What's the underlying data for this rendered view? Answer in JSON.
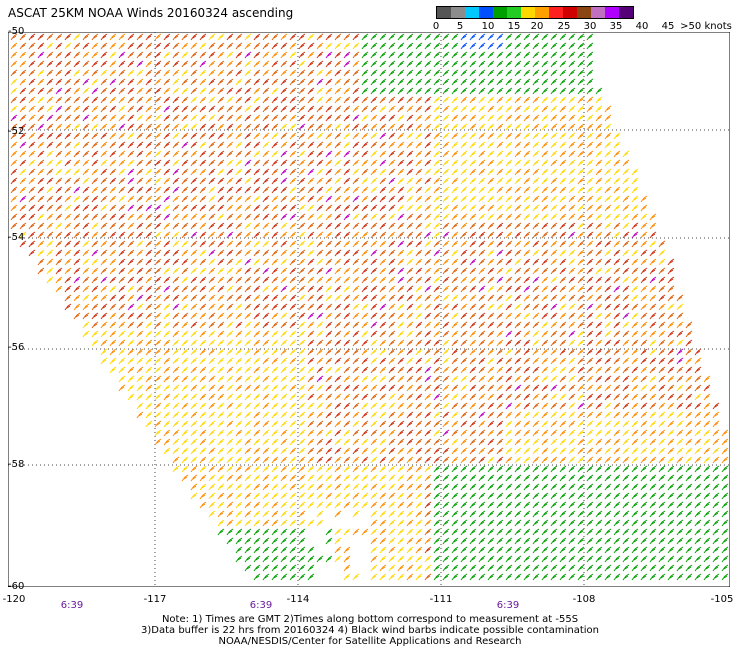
{
  "title": "ASCAT 25KM NOAA Winds 20160324 ascending",
  "legend": {
    "colors": [
      "#555555",
      "#8c8c8c",
      "#00c8ff",
      "#0050ff",
      "#00a000",
      "#22cc22",
      "#ffd800",
      "#ffa000",
      "#ff2020",
      "#d00000",
      "#8b4513",
      "#c070c0",
      "#b000ff",
      "#550077"
    ],
    "labels": [
      "0",
      "5",
      "10",
      "15",
      "20",
      "25",
      "30",
      "35",
      "40",
      "45",
      ">50 knots"
    ]
  },
  "lat_labels": [
    "-50",
    "-52",
    "-54",
    "-56",
    "-58",
    "-60"
  ],
  "lon_labels": [
    "-120",
    "-117",
    "-114",
    "-111",
    "-108",
    "-105"
  ],
  "time_labels": [
    "6:39",
    "6:39",
    "6:39"
  ],
  "notes": [
    "Note: 1) Times are GMT 2)Times along bottom correspond to measurement at -55S",
    "3)Data buffer is 22 hrs from 20160324 4) Black wind barbs indicate possible contamination",
    "NOAA/NESDIS/Center for Satellite Applications and Research"
  ],
  "barb_colors": {
    "orange": "#ff8c00",
    "dark_orange": "#e0600a",
    "red": "#d03010",
    "yellow": "#ffd800",
    "green": "#00a000",
    "blue": "#0050ff",
    "magenta": "#c000c0"
  }
}
